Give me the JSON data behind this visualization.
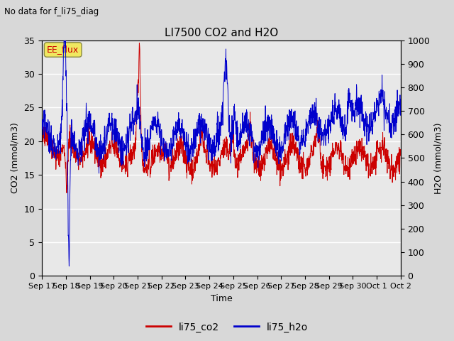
{
  "title": "LI7500 CO2 and H2O",
  "suptitle": "No data for f_li75_diag",
  "xlabel": "Time",
  "ylabel_left": "CO2 (mmol/m3)",
  "ylabel_right": "H2O (mmol/m3)",
  "ylim_left": [
    0,
    35
  ],
  "ylim_right": [
    0,
    1000
  ],
  "yticks_left": [
    0,
    5,
    10,
    15,
    20,
    25,
    30,
    35
  ],
  "yticks_right": [
    0,
    100,
    200,
    300,
    400,
    500,
    600,
    700,
    800,
    900,
    1000
  ],
  "xtick_labels": [
    "Sep 17",
    "Sep 18",
    "Sep 19",
    "Sep 20",
    "Sep 21",
    "Sep 22",
    "Sep 23",
    "Sep 24",
    "Sep 25",
    "Sep 26",
    "Sep 27",
    "Sep 28",
    "Sep 29",
    "Sep 30",
    "Oct 1",
    "Oct 2"
  ],
  "legend_label_co2": "li75_co2",
  "legend_label_h2o": "li75_h2o",
  "legend_box_label": "EE_flux",
  "co2_color": "#cc0000",
  "h2o_color": "#0000cc",
  "background_color": "#d8d8d8",
  "plot_bg_color": "#e8e8e8",
  "grid_color": "#ffffff",
  "seed": 42,
  "figsize": [
    6.4,
    4.8
  ],
  "dpi": 100
}
